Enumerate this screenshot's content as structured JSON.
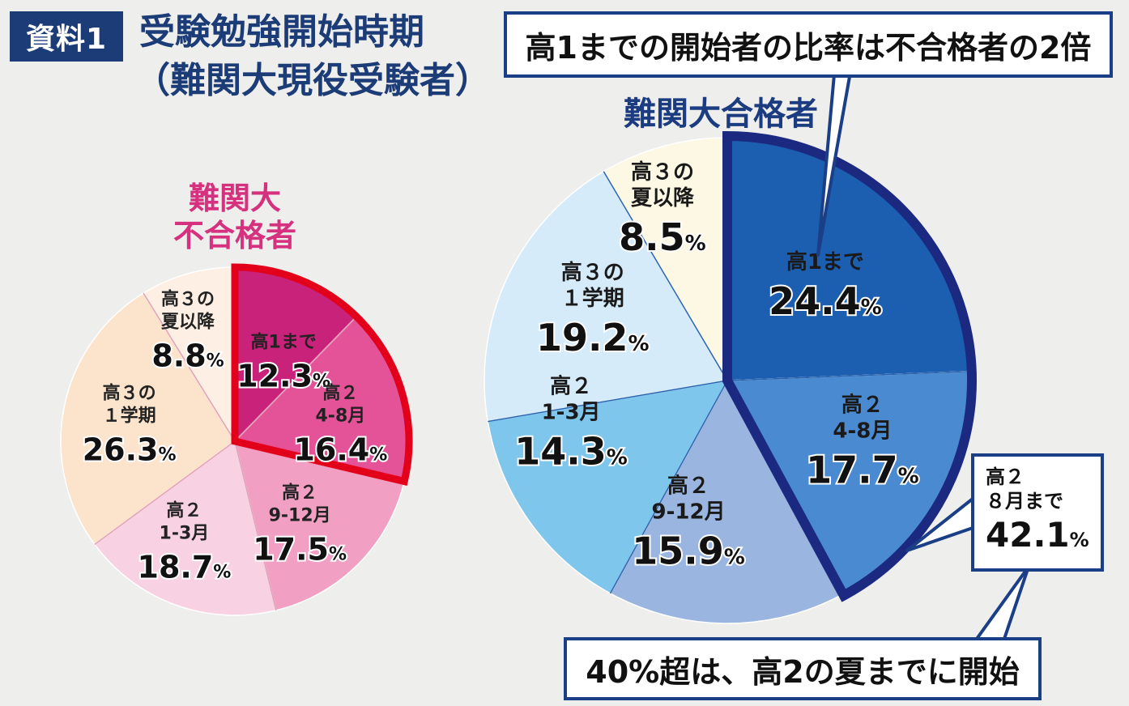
{
  "header": {
    "badge": "資料1",
    "title_line1": "受験勉強開始時期",
    "title_line2": "（難関大現役受験者）"
  },
  "callouts": {
    "top": "高1までの開始者の比率は不合格者の2倍",
    "bottom": "40%超は、高2の夏までに開始",
    "right_label_1": "高２",
    "right_label_2": "８月まで",
    "right_value": "42.1",
    "right_unit": "%"
  },
  "colors": {
    "title_blue": "#1c3c78",
    "fail_heading": "#d6317e",
    "fail_highlight": "#e2001a",
    "pass_highlight": "#1b2a80"
  },
  "chart_data": [
    {
      "type": "pie",
      "title_line1": "難関大",
      "title_line2": "不合格者",
      "unit": "%",
      "start": "12 o'clock, clockwise",
      "highlighted_slices": [
        "高1まで",
        "高2 4-8月"
      ],
      "slices": [
        {
          "label_lines": [
            "高1まで"
          ],
          "label": "高1まで",
          "value": 12.3,
          "color": "#c8227a"
        },
        {
          "label_lines": [
            "高２",
            "4-8月"
          ],
          "label": "高2 4-8月",
          "value": 16.4,
          "color": "#e45298"
        },
        {
          "label_lines": [
            "高２",
            "9-12月"
          ],
          "label": "高2 9-12月",
          "value": 17.5,
          "color": "#f1a0c3"
        },
        {
          "label_lines": [
            "高２",
            "1-3月"
          ],
          "label": "高2 1-3月",
          "value": 18.7,
          "color": "#f8d2e2"
        },
        {
          "label_lines": [
            "高３の",
            "１学期"
          ],
          "label": "高3の1学期",
          "value": 26.3,
          "color": "#fbe3cc"
        },
        {
          "label_lines": [
            "高３の",
            "夏以降"
          ],
          "label": "高3の夏以降",
          "value": 8.8,
          "color": "#fdefe4"
        }
      ]
    },
    {
      "type": "pie",
      "title": "難関大合格者",
      "unit": "%",
      "start": "12 o'clock, clockwise",
      "highlighted_slices": [
        "高1まで",
        "高2 4-8月"
      ],
      "slices": [
        {
          "label_lines": [
            "高1まで"
          ],
          "label": "高1まで",
          "value": 24.4,
          "color": "#1c5fb0"
        },
        {
          "label_lines": [
            "高２",
            "4-8月"
          ],
          "label": "高2 4-8月",
          "value": 17.7,
          "color": "#4a8ad0"
        },
        {
          "label_lines": [
            "高２",
            "9-12月"
          ],
          "label": "高2 9-12月",
          "value": 15.9,
          "color": "#9ab6e0"
        },
        {
          "label_lines": [
            "高２",
            "1-3月"
          ],
          "label": "高2 1-3月",
          "value": 14.3,
          "color": "#7fc6ec"
        },
        {
          "label_lines": [
            "高３の",
            "１学期"
          ],
          "label": "高3の1学期",
          "value": 19.2,
          "color": "#d5ebf9"
        },
        {
          "label_lines": [
            "高３の",
            "夏以降"
          ],
          "label": "高3の夏以降",
          "value": 8.5,
          "color": "#fcf8e3"
        }
      ]
    }
  ]
}
